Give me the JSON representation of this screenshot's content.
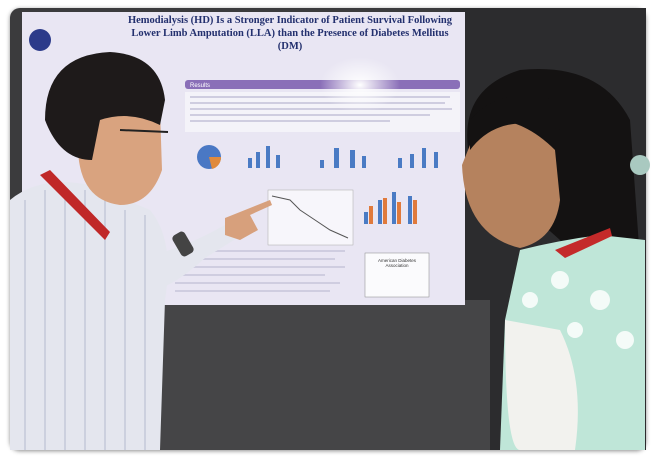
{
  "poster": {
    "title": "Hemodialysis (HD) Is a Stronger Indicator of Patient Survival Following Lower Limb Amputation (LLA) than the Presence of Diabetes Mellitus (DM)",
    "section": "Results",
    "logo_box": "American Diabetes Association"
  }
}
